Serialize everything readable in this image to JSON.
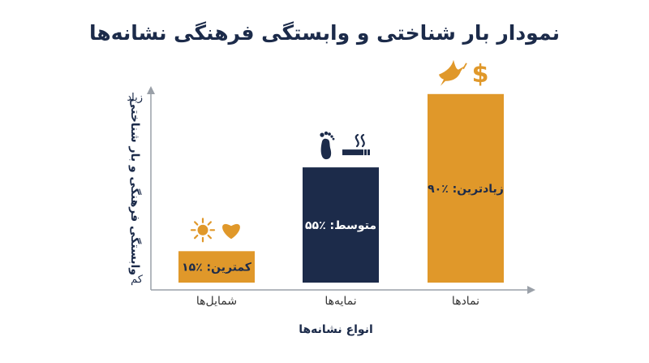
{
  "title": "نمودار بار شناختی و وابستگی فرهنگی نشانه‌ها",
  "colors": {
    "orange": "#e0982a",
    "navy": "#1c2b4a",
    "axis": "#9aa0a8"
  },
  "chart_data": {
    "type": "bar",
    "title": "نمودار بار شناختی و وابستگی فرهنگی نشانه‌ها",
    "xlabel": "انواع نشانه‌ها",
    "ylabel": "وابستگی فرهنگی و بار شناختی",
    "y_tick_high": "زیاد",
    "y_tick_low": "کم",
    "ylim": [
      0,
      100
    ],
    "categories": [
      "شمایل‌ها",
      "نمایه‌ها",
      "نمادها"
    ],
    "values": [
      15,
      55,
      90
    ],
    "bar_labels": [
      "کمترین: ٪۱۵",
      "متوسط: ٪۵۵",
      "زیادترین: ٪۹۰"
    ],
    "bar_colors": [
      "#e0982a",
      "#1c2b4a",
      "#e0982a"
    ],
    "bar_label_colors": [
      "#1c2b4a",
      "#ffffff",
      "#1c2b4a"
    ],
    "icons": [
      [
        "sun-icon",
        "heart-icon"
      ],
      [
        "footprint-icon",
        "cigarette-icon"
      ],
      [
        "dove-icon",
        "dollar-icon"
      ]
    ],
    "grid": false
  }
}
